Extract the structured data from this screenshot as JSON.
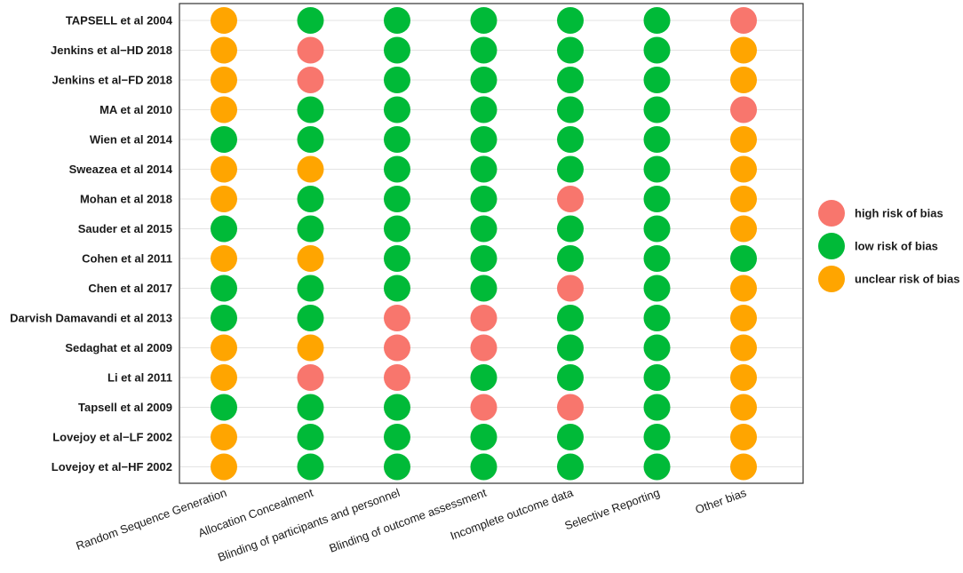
{
  "chart_data": {
    "type": "scatter",
    "title": "",
    "xlabel": "",
    "ylabel": "",
    "domains": [
      "Random Sequence Generation",
      "Allocation  Concealment",
      "Blinding of participants and personnel",
      "Blinding of outcome assessment",
      "Incomplete outcome data",
      "Selective  Reporting",
      "Other bias"
    ],
    "studies": [
      "TAPSELL et al 2004",
      "Jenkins et al−HD 2018",
      "Jenkins et al−FD 2018",
      "MA et al 2010",
      "Wien et al 2014",
      "Sweazea et al 2014",
      "Mohan et al 2018",
      "Sauder et al 2015",
      "Cohen et al 2011",
      "Chen et al 2017",
      "Darvish Damavandi et al 2013",
      "Sedaghat et al 2009",
      "Li et al 2011",
      "Tapsell et al 2009",
      "Lovejoy et al−LF 2002",
      "Lovejoy et al−HF 2002"
    ],
    "ratings": [
      [
        "unclear",
        "low",
        "low",
        "low",
        "low",
        "low",
        "high"
      ],
      [
        "unclear",
        "high",
        "low",
        "low",
        "low",
        "low",
        "unclear"
      ],
      [
        "unclear",
        "high",
        "low",
        "low",
        "low",
        "low",
        "unclear"
      ],
      [
        "unclear",
        "low",
        "low",
        "low",
        "low",
        "low",
        "high"
      ],
      [
        "low",
        "low",
        "low",
        "low",
        "low",
        "low",
        "unclear"
      ],
      [
        "unclear",
        "unclear",
        "low",
        "low",
        "low",
        "low",
        "unclear"
      ],
      [
        "unclear",
        "low",
        "low",
        "low",
        "high",
        "low",
        "unclear"
      ],
      [
        "low",
        "low",
        "low",
        "low",
        "low",
        "low",
        "unclear"
      ],
      [
        "unclear",
        "unclear",
        "low",
        "low",
        "low",
        "low",
        "low"
      ],
      [
        "low",
        "low",
        "low",
        "low",
        "high",
        "low",
        "unclear"
      ],
      [
        "low",
        "low",
        "high",
        "high",
        "low",
        "low",
        "unclear"
      ],
      [
        "unclear",
        "unclear",
        "high",
        "high",
        "low",
        "low",
        "unclear"
      ],
      [
        "unclear",
        "high",
        "high",
        "low",
        "low",
        "low",
        "unclear"
      ],
      [
        "low",
        "low",
        "low",
        "high",
        "high",
        "low",
        "unclear"
      ],
      [
        "unclear",
        "low",
        "low",
        "low",
        "low",
        "low",
        "unclear"
      ],
      [
        "unclear",
        "low",
        "low",
        "low",
        "low",
        "low",
        "unclear"
      ]
    ],
    "legend": {
      "placement": "right",
      "entries": [
        {
          "key": "high",
          "label": "high risk of bias",
          "color": "#F8766D"
        },
        {
          "key": "low",
          "label": "low risk of bias",
          "color": "#00BA38"
        },
        {
          "key": "unclear",
          "label": "unclear risk of bias",
          "color": "#FFA500"
        }
      ]
    },
    "grid": true
  }
}
